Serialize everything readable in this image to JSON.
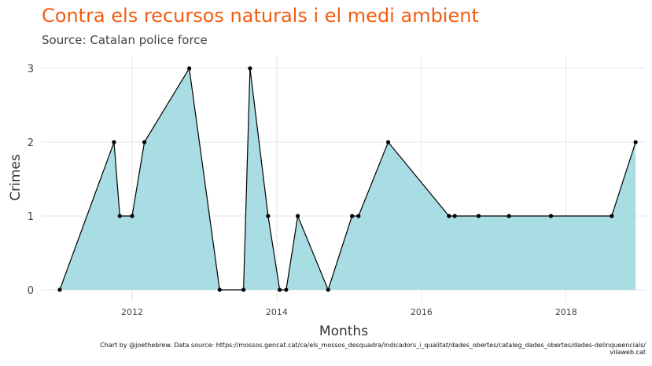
{
  "header": {
    "title": "Contra els recursos naturals i el medi ambient",
    "subtitle": "Source: Catalan police force"
  },
  "caption": {
    "line1": "Chart by @joethebrew. Data source: https://mossos.gencat.cat/ca/els_mossos_desquadra/indicadors_i_qualitat/dades_obertes/cataleg_dades_obertes/dades-delinqueencials/",
    "line2": "vilaweb.cat"
  },
  "colors": {
    "title": "#f25c0f",
    "area_fill": "#a8dde3",
    "line": "#000000",
    "grid": "#e6e6e6"
  },
  "chart_data": {
    "type": "area",
    "xlabel": "Months",
    "ylabel": "Crimes",
    "xlim": [
      2010.75,
      2019.1
    ],
    "ylim": [
      -0.16,
      3.16
    ],
    "x_ticks": [
      2012,
      2014,
      2016,
      2018
    ],
    "x_tick_labels": [
      "2012",
      "2014",
      "2016",
      "2018"
    ],
    "y_ticks": [
      0,
      1,
      2,
      3
    ],
    "y_tick_labels": [
      "0",
      "1",
      "2",
      "3"
    ],
    "grid": true,
    "series": [
      {
        "x": [
          2011.0,
          2011.75,
          2011.83,
          2012.0,
          2012.17,
          2012.79,
          2013.21,
          2013.54,
          2013.63,
          2013.88,
          2014.04,
          2014.13,
          2014.29,
          2014.71,
          2015.04,
          2015.13,
          2015.54,
          2016.38,
          2016.46,
          2016.79,
          2017.21,
          2017.79,
          2018.63,
          2018.96
        ],
        "y": [
          0,
          2,
          1,
          1,
          2,
          3,
          0,
          0,
          3,
          1,
          0,
          0,
          1,
          0,
          1,
          1,
          2,
          1,
          1,
          1,
          1,
          1,
          1,
          2
        ]
      }
    ]
  }
}
